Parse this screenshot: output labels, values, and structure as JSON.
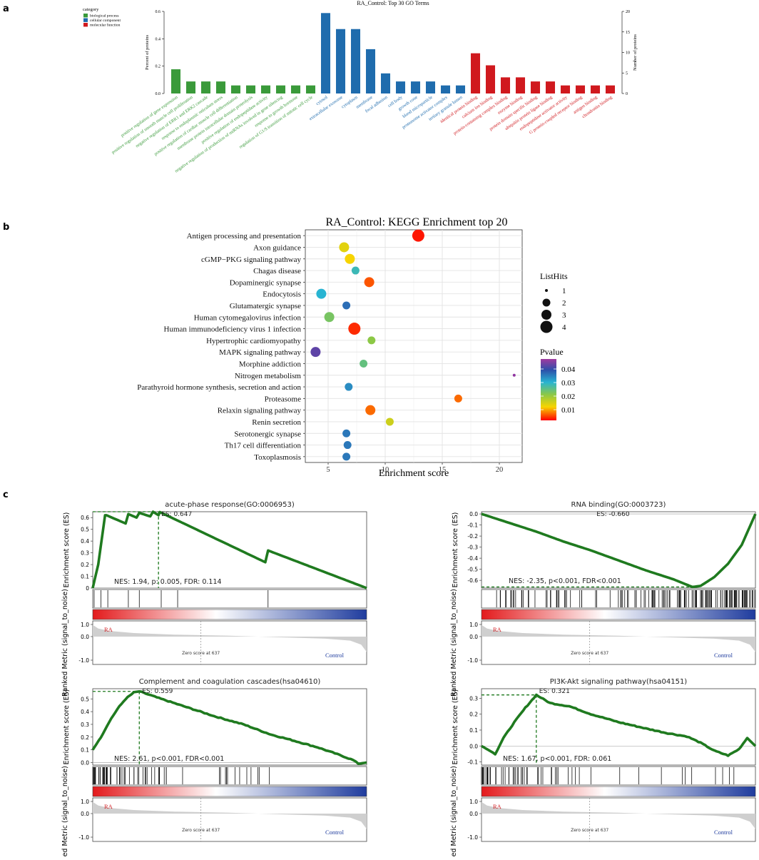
{
  "panel_labels": {
    "a": "a",
    "b": "b",
    "c": "c"
  },
  "colors": {
    "biological_process": "#3a9a3a",
    "cellular_component": "#1f6cad",
    "molecular_function": "#d0191e",
    "gsea_line": "#1f7a1f",
    "gsea_dash": "#1f7a1f",
    "bar_red": "#e31a1c",
    "bar_blue": "#1f3c9e",
    "ra_label": "#d0191e",
    "control_label": "#1f3c9e"
  },
  "chart_data": [
    {
      "id": "go_bar",
      "type": "bar",
      "title": "RA_Control: Top 30 GO Terms",
      "ylabel": "Percent of proteins",
      "ylabel_right": "Number of proteins",
      "ylim": [
        0,
        0.6
      ],
      "yticks": [
        "0.0",
        "0.2",
        "0.4",
        "0.6"
      ],
      "yticks_right": [
        "0",
        "5",
        "10",
        "15",
        "20"
      ],
      "legend": {
        "title": "category",
        "entries": [
          "biological process",
          "cellular component",
          "molecular function"
        ],
        "placement": "top-left"
      },
      "categories": [
        "positive regulation of gene expression",
        "positive regulation of smooth muscle cell proliferation",
        "negative regulation of ERK1 and ERK2 cascade",
        "response to endoplasmic reticulum stress",
        "positive regulation of cardiac muscle cell differentiation",
        "membrane protein intracellular domain proteolysis",
        "positive regulation of endopeptidase activity",
        "negative regulation of production of miRNAs involved in gene silencing",
        "response to growth hormone",
        "regulation of G1/S transition of mitotic cell cycle",
        "cytosol",
        "extracellular exosome",
        "cytoplasm",
        "membrane",
        "focal adhesion",
        "cell body",
        "growth cone",
        "blood microparticle",
        "proteasome activator complex",
        "tertiary granule lumen",
        "identical protein binding",
        "calcium ion binding",
        "protein-containing complex binding",
        "enzyme binding",
        "protein domain specific binding",
        "ubiquitin protein ligase binding",
        "endopeptidase activator activity",
        "G protein-coupled receptor binding",
        "antigen binding",
        "chondroitin binding"
      ],
      "groups": [
        "bp",
        "bp",
        "bp",
        "bp",
        "bp",
        "bp",
        "bp",
        "bp",
        "bp",
        "bp",
        "cc",
        "cc",
        "cc",
        "cc",
        "cc",
        "cc",
        "cc",
        "cc",
        "cc",
        "cc",
        "mf",
        "mf",
        "mf",
        "mf",
        "mf",
        "mf",
        "mf",
        "mf",
        "mf",
        "mf"
      ],
      "values": [
        0.177,
        0.088,
        0.088,
        0.088,
        0.059,
        0.059,
        0.059,
        0.059,
        0.059,
        0.059,
        0.588,
        0.471,
        0.471,
        0.324,
        0.147,
        0.088,
        0.088,
        0.088,
        0.059,
        0.059,
        0.294,
        0.206,
        0.118,
        0.118,
        0.088,
        0.088,
        0.059,
        0.059,
        0.059,
        0.059
      ]
    },
    {
      "id": "kegg_dot",
      "type": "scatter",
      "title": "RA_Control: KEGG Enrichment top 20",
      "xlabel": "Enrichment score",
      "xlim": [
        3,
        22
      ],
      "xticks": [
        5,
        10,
        15,
        20
      ],
      "categories": [
        "Antigen processing and presentation",
        "Axon guidance",
        "cGMP−PKG signaling pathway",
        "Chagas disease",
        "Dopaminergic synapse",
        "Endocytosis",
        "Glutamatergic synapse",
        "Human cytomegalovirus infection",
        "Human immunodeficiency virus 1 infection",
        "Hypertrophic cardiomyopathy",
        "MAPK signaling pathway",
        "Morphine addiction",
        "Nitrogen metabolism",
        "Parathyroid hormone synthesis, secretion and action",
        "Proteasome",
        "Relaxin signaling pathway",
        "Renin secretion",
        "Serotonergic synapse",
        "Th17 cell differentiation",
        "Toxoplasmosis"
      ],
      "x": [
        12.9,
        6.4,
        6.9,
        7.4,
        8.6,
        4.4,
        6.6,
        5.1,
        7.3,
        8.8,
        3.9,
        8.1,
        21.3,
        6.8,
        16.4,
        8.7,
        10.4,
        6.6,
        6.7,
        6.6
      ],
      "size": [
        4,
        3,
        3,
        2,
        3,
        3,
        2,
        3,
        4,
        2,
        3,
        2,
        1,
        2,
        2,
        3,
        2,
        2,
        2,
        2
      ],
      "pvalue": [
        0.001,
        0.012,
        0.01,
        0.028,
        0.004,
        0.03,
        0.037,
        0.022,
        0.002,
        0.02,
        0.043,
        0.024,
        0.046,
        0.034,
        0.005,
        0.005,
        0.014,
        0.036,
        0.036,
        0.036
      ],
      "legend_size": {
        "title": "ListHits",
        "entries": [
          "1",
          "2",
          "3",
          "4"
        ]
      },
      "legend_color": {
        "title": "Pvalue",
        "ticks": [
          "0.04",
          "0.03",
          "0.02",
          "0.01"
        ]
      }
    },
    {
      "id": "gsea_1",
      "type": "line",
      "title": "acute-phase response(GO:0006953)",
      "ylabel": "Enrichment score (ES)",
      "yticks": [
        "0.6",
        "0.5",
        "0.4",
        "0.3",
        "0.2",
        "0.1",
        "0"
      ],
      "ylim": [
        0,
        0.65
      ],
      "es_label": "ES: 0.647",
      "stats_label": "NES: 1.94, p: 0.005, FDR: 0.114",
      "peak_x": 0.24,
      "x": [
        0,
        0.02,
        0.045,
        0.05,
        0.12,
        0.13,
        0.16,
        0.17,
        0.21,
        0.22,
        0.24,
        0.245,
        0.63,
        0.64,
        1.0
      ],
      "y": [
        0,
        0.2,
        0.62,
        0.62,
        0.55,
        0.63,
        0.6,
        0.64,
        0.61,
        0.65,
        0.62,
        0.647,
        0.22,
        0.32,
        0
      ],
      "hits": [
        0.005,
        0.03,
        0.055,
        0.13,
        0.17,
        0.25,
        0.31,
        0.64
      ],
      "metric_ylabel": "Ranked Metric (signal_to_noise)",
      "metric_ticks": [
        "1.0",
        "0.0",
        "-1.0"
      ],
      "ra_label": "RA",
      "control_label": "Control",
      "zero_label": "Zero score at 637"
    },
    {
      "id": "gsea_2",
      "type": "line",
      "title": "RNA binding(GO:0003723)",
      "ylabel": "Enrichment score (ES)",
      "yticks": [
        "0.0",
        "-0.1",
        "-0.2",
        "-0.3",
        "-0.4",
        "-0.5",
        "-0.6"
      ],
      "ylim": [
        -0.67,
        0.02
      ],
      "es_label": "ES: -0.660",
      "stats_label": "NES: -2.35, p<0.001, FDR<0.001",
      "peak_x": 0.77,
      "x": [
        0,
        0.1,
        0.2,
        0.3,
        0.4,
        0.5,
        0.6,
        0.7,
        0.77,
        0.8,
        0.85,
        0.9,
        0.95,
        1.0
      ],
      "y": [
        0,
        -0.08,
        -0.16,
        -0.25,
        -0.33,
        -0.42,
        -0.51,
        -0.59,
        -0.66,
        -0.65,
        -0.57,
        -0.45,
        -0.28,
        0
      ],
      "hits_density": "right",
      "metric_ylabel": "Ranked Metric (signal_to_noise)",
      "metric_ticks": [
        "1.0",
        "0.0",
        "-1.0"
      ],
      "ra_label": "RA",
      "control_label": "Control",
      "zero_label": "Zero score at 637"
    },
    {
      "id": "gsea_3",
      "type": "line",
      "title": "Complement and coagulation cascades(hsa04610)",
      "ylabel": "Enrichment score (ES)",
      "yticks": [
        "0.5",
        "0.4",
        "0.3",
        "0.2",
        "0.1",
        "0.0"
      ],
      "ylim": [
        -0.02,
        0.58
      ],
      "es_label": "ES: 0.559",
      "stats_label": "NES: 2.61, p<0.001, FDR<0.001",
      "peak_x": 0.17,
      "x": [
        0,
        0.03,
        0.06,
        0.09,
        0.12,
        0.15,
        0.17,
        0.25,
        0.35,
        0.45,
        0.55,
        0.65,
        0.72,
        0.82,
        0.9,
        0.95,
        0.97,
        1.0
      ],
      "y": [
        0.1,
        0.2,
        0.32,
        0.42,
        0.5,
        0.55,
        0.559,
        0.5,
        0.43,
        0.36,
        0.3,
        0.22,
        0.18,
        0.12,
        0.06,
        0.02,
        -0.01,
        0
      ],
      "hits_density": "left",
      "metric_ylabel": "Ranked Metric (signal_to_noise)",
      "metric_ticks": [
        "1.0",
        "0.0",
        "-1.0"
      ],
      "ra_label": "RA",
      "control_label": "Control",
      "zero_label": "Zero score at 637"
    },
    {
      "id": "gsea_4",
      "type": "line",
      "title": "PI3K-Akt signaling pathway(hsa04151)",
      "ylabel": "Enrichment score (ES)",
      "yticks": [
        "0.3",
        "0.2",
        "0.1",
        "0.0",
        "-0.1"
      ],
      "ylim": [
        -0.12,
        0.36
      ],
      "es_label": "ES: 0.321",
      "stats_label": "NES: 1.67, p<0.001, FDR: 0.061",
      "peak_x": 0.2,
      "x": [
        0,
        0.05,
        0.08,
        0.12,
        0.16,
        0.2,
        0.25,
        0.32,
        0.4,
        0.5,
        0.6,
        0.68,
        0.75,
        0.8,
        0.85,
        0.9,
        0.94,
        0.97,
        1.0
      ],
      "y": [
        0,
        -0.05,
        0.05,
        0.15,
        0.24,
        0.321,
        0.27,
        0.25,
        0.2,
        0.15,
        0.11,
        0.08,
        0.06,
        0.02,
        -0.03,
        -0.06,
        -0.02,
        0.05,
        0
      ],
      "hits_density": "left",
      "metric_ylabel": "Ranked Metric (signal_to_noise)",
      "metric_ticks": [
        "1.0",
        "0.0",
        "-1.0"
      ],
      "ra_label": "RA",
      "control_label": "Control",
      "zero_label": "Zero score at 637"
    }
  ]
}
